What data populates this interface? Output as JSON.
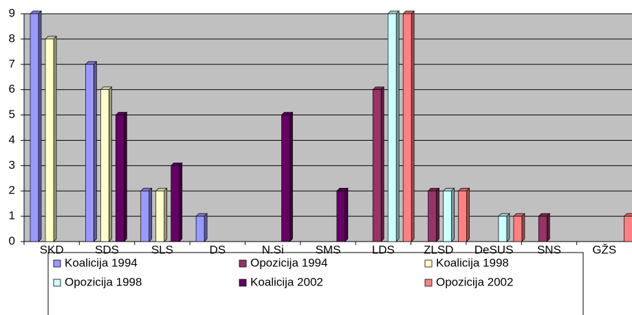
{
  "chart_data": {
    "type": "bar",
    "categories": [
      "SKD",
      "SDS",
      "SLS",
      "DS",
      "N.Si",
      "SMS",
      "LDS",
      "ZLSD",
      "DeSUS",
      "SNS",
      "GŽS"
    ],
    "series": [
      {
        "name": "Koalicija 1994",
        "color": "#9999ff",
        "values": [
          9,
          7,
          2,
          1,
          null,
          null,
          null,
          null,
          null,
          null,
          null
        ]
      },
      {
        "name": "Opozicija 1994",
        "color": "#993366",
        "values": [
          null,
          null,
          null,
          null,
          null,
          null,
          6,
          2,
          null,
          1,
          null
        ]
      },
      {
        "name": "Koalicija 1998",
        "color": "#ffffcc",
        "values": [
          8,
          6,
          2,
          null,
          null,
          null,
          null,
          null,
          null,
          null,
          null
        ]
      },
      {
        "name": "Opozicija 1998",
        "color": "#ccffff",
        "values": [
          null,
          null,
          null,
          null,
          null,
          null,
          9,
          2,
          1,
          null,
          null
        ]
      },
      {
        "name": "Koalicija 2002",
        "color": "#660066",
        "values": [
          null,
          5,
          3,
          null,
          5,
          2,
          null,
          null,
          null,
          null,
          null
        ]
      },
      {
        "name": "Opozicija 2002",
        "color": "#ff8080",
        "values": [
          null,
          null,
          null,
          null,
          null,
          null,
          9,
          2,
          1,
          null,
          1
        ]
      }
    ],
    "ylim": [
      0,
      9
    ],
    "yticks": [
      0,
      1,
      2,
      3,
      4,
      5,
      6,
      7,
      8,
      9
    ],
    "grid": true,
    "legend": "bottom"
  }
}
